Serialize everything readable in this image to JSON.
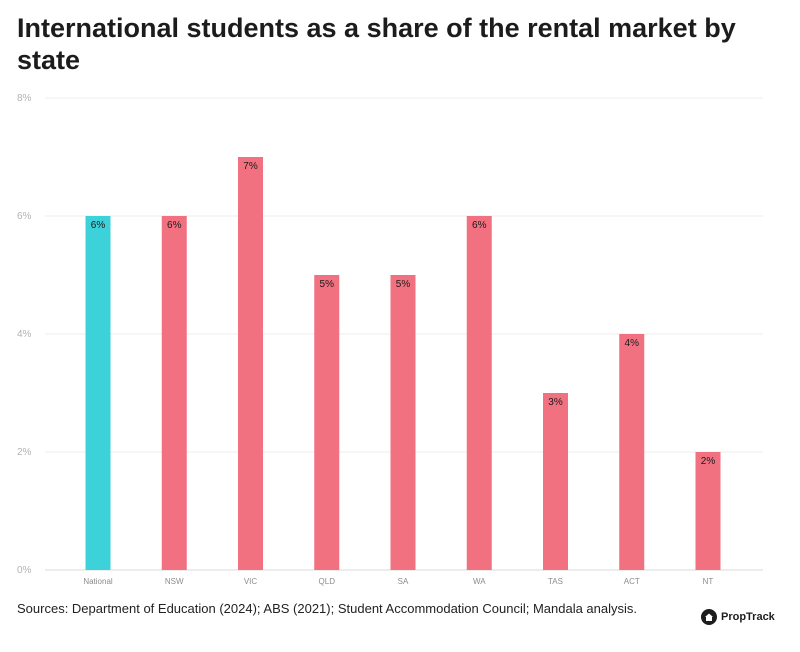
{
  "chart_data": {
    "type": "bar",
    "title": "International students as a share of the rental market by state",
    "categories": [
      "National",
      "NSW",
      "VIC",
      "QLD",
      "SA",
      "WA",
      "TAS",
      "ACT",
      "NT"
    ],
    "values": [
      6,
      6,
      7,
      5,
      5,
      6,
      3,
      4,
      2
    ],
    "data_labels": [
      "6%",
      "6%",
      "7%",
      "5%",
      "5%",
      "6%",
      "3%",
      "4%",
      "2%"
    ],
    "bar_colors": [
      "#3dd2da",
      "#f27180",
      "#f27180",
      "#f27180",
      "#f27180",
      "#f27180",
      "#f27180",
      "#f27180",
      "#f27180"
    ],
    "ylim": [
      0,
      8
    ],
    "y_ticks": [
      0,
      2,
      4,
      6,
      8
    ],
    "y_tick_labels": [
      "0%",
      "2%",
      "4%",
      "6%",
      "8%"
    ],
    "grid": true,
    "legend": "none"
  },
  "footer": {
    "source": "Sources: Department of Education (2024); ABS (2021); Student Accommodation Council; Mandala analysis.",
    "brand": "PropTrack"
  }
}
